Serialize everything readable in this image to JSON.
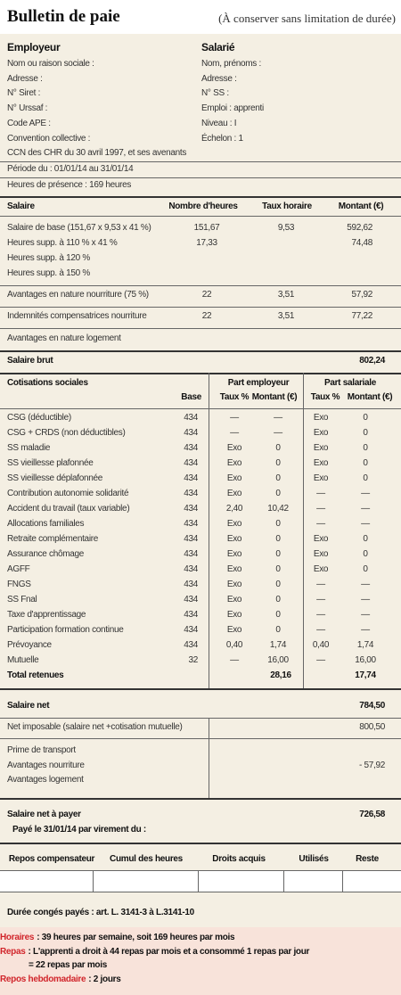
{
  "header": {
    "title": "Bulletin de paie",
    "note": "(À conserver sans limitation de durée)"
  },
  "employer": {
    "heading": "Employeur",
    "lines": [
      "Nom ou raison sociale :",
      "Adresse :",
      "N° Siret :",
      "N° Urssaf :",
      "Code APE :",
      "Convention collective :",
      "CCN des CHR du 30 avril 1997, et ses avenants"
    ]
  },
  "employee": {
    "heading": "Salarié",
    "lines": [
      "Nom, prénoms :",
      "Adresse :",
      "N° SS :",
      "Emploi : apprenti",
      "Niveau : I",
      "Échelon : 1"
    ]
  },
  "period": "Période du : 01/01/14 au 31/01/14",
  "hours": "Heures de présence : 169 heures",
  "salary": {
    "columns": [
      "Salaire",
      "Nombre d'heures",
      "Taux horaire",
      "Montant (€)"
    ],
    "rows": [
      [
        "Salaire de base (151,67 x 9,53 x 41 %)",
        "151,67",
        "9,53",
        "592,62"
      ],
      [
        "Heures supp. à 110 % x 41 %",
        "17,33",
        null,
        "74,48"
      ],
      [
        "Heures supp. à 120 %",
        null,
        null,
        null
      ],
      [
        "Heures supp. à 150 %",
        null,
        null,
        null
      ],
      [
        "Avantages en nature nourriture (75 %)",
        "22",
        "3,51",
        "57,92"
      ],
      [
        "Indemnités compensatrices nourriture",
        "22",
        "3,51",
        "77,22"
      ],
      [
        "Avantages en nature logement",
        null,
        null,
        null
      ]
    ],
    "gross": {
      "label": "Salaire brut",
      "amount": "802,24"
    }
  },
  "contributions": {
    "heading": "Cotisations sociales",
    "base": "Base",
    "employer_part": "Part employeur",
    "employee_part": "Part salariale",
    "subcolumns": [
      "Taux %",
      "Montant (€)",
      "Taux %",
      "Montant (€)"
    ],
    "rows": [
      [
        "CSG (déductible)",
        "434",
        "—",
        "—",
        "Exo",
        "0"
      ],
      [
        "CSG + CRDS (non déductibles)",
        "434",
        "—",
        "—",
        "Exo",
        "0"
      ],
      [
        "SS maladie",
        "434",
        "Exo",
        "0",
        "Exo",
        "0"
      ],
      [
        "SS vieillesse plafonnée",
        "434",
        "Exo",
        "0",
        "Exo",
        "0"
      ],
      [
        "SS vieillesse déplafonnée",
        "434",
        "Exo",
        "0",
        "Exo",
        "0"
      ],
      [
        "Contribution autonomie solidarité",
        "434",
        "Exo",
        "0",
        "—",
        "—"
      ],
      [
        "Accident du travail (taux variable)",
        "434",
        "2,40",
        "10,42",
        "—",
        "—"
      ],
      [
        "Allocations familiales",
        "434",
        "Exo",
        "0",
        "—",
        "—"
      ],
      [
        "Retraite complémentaire",
        "434",
        "Exo",
        "0",
        "Exo",
        "0"
      ],
      [
        "Assurance chômage",
        "434",
        "Exo",
        "0",
        "Exo",
        "0"
      ],
      [
        "AGFF",
        "434",
        "Exo",
        "0",
        "Exo",
        "0"
      ],
      [
        "FNGS",
        "434",
        "Exo",
        "0",
        "—",
        "—"
      ],
      [
        "SS Fnal",
        "434",
        "Exo",
        "0",
        "—",
        "—"
      ],
      [
        "Taxe d'apprentissage",
        "434",
        "Exo",
        "0",
        "—",
        "—"
      ],
      [
        "Participation formation continue",
        "434",
        "Exo",
        "0",
        "—",
        "—"
      ],
      [
        "Prévoyance",
        "434",
        "0,40",
        "1,74",
        "0,40",
        "1,74"
      ],
      [
        "Mutuelle",
        "32",
        "—",
        "16,00",
        "—",
        "16,00"
      ]
    ],
    "total": {
      "label": "Total retenues",
      "employer": "28,16",
      "employee": "17,74"
    }
  },
  "net": {
    "net_salary": {
      "label": "Salaire net",
      "amount": "784,50"
    },
    "taxable": {
      "label": "Net imposable (salaire net +cotisation mutuelle)",
      "amount": "800,50"
    },
    "adjustments": [
      {
        "label": "Prime de transport",
        "amount": null
      },
      {
        "label": "Avantages nourriture",
        "amount": "- 57,92"
      },
      {
        "label": "Avantages logement",
        "amount": null
      }
    ],
    "to_pay": {
      "label": "Salaire net à payer",
      "amount": "726,58"
    },
    "paid": "Payé le 31/01/14 par virement du :"
  },
  "rest": {
    "columns": [
      "Repos compensateur",
      "Cumul des heures",
      "Droits acquis",
      "Utilisés",
      "Reste"
    ]
  },
  "leave": "Durée congés payés : art. L. 3141-3  à  L.3141-10",
  "notes": [
    {
      "label": "Horaires",
      "lines": [
        ": 39 heures par semaine, soit 169 heures par mois"
      ]
    },
    {
      "label": "Repas",
      "lines": [
        ": L'apprenti a droit à 44 repas par mois et a consommé 1 repas par jour",
        "= 22 repas par mois"
      ]
    },
    {
      "label": "Repos hebdomadaire",
      "lines": [
        ": 2 jours"
      ]
    }
  ]
}
